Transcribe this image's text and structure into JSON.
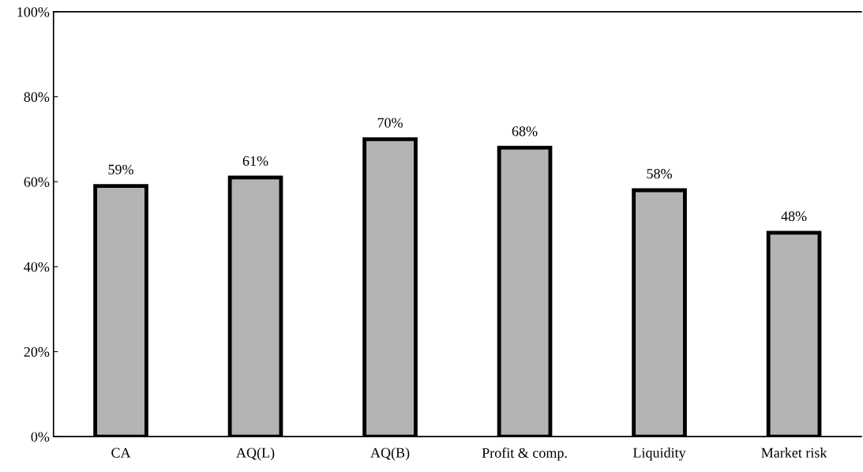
{
  "chart_data": {
    "type": "bar",
    "categories": [
      "CA",
      "AQ(L)",
      "AQ(B)",
      "Profit & comp.",
      "Liquidity",
      "Market risk"
    ],
    "values": [
      59,
      61,
      70,
      68,
      58,
      48
    ],
    "value_labels": [
      "59%",
      "61%",
      "70%",
      "68%",
      "58%",
      "48%"
    ],
    "color": "#b4b4b4",
    "ylim": [
      0,
      100
    ],
    "yticks": [
      {
        "value": 0,
        "label": "0%"
      },
      {
        "value": 20,
        "label": "20%"
      },
      {
        "value": 40,
        "label": "40%"
      },
      {
        "value": 60,
        "label": "60%"
      },
      {
        "value": 80,
        "label": "80%"
      },
      {
        "value": 100,
        "label": "100%"
      }
    ],
    "grid": false,
    "legend": false
  }
}
